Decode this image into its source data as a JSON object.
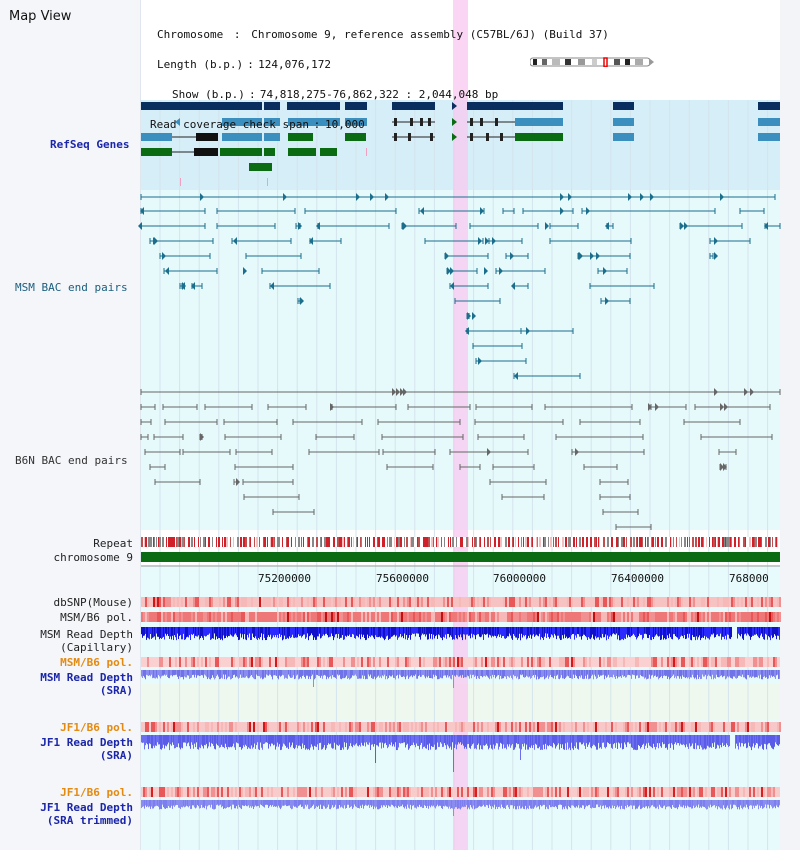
{
  "title": "Map View",
  "info": {
    "chromosome_label": "Chromosome",
    "chromosome_value": "Chromosome 9, reference assembly (C57BL/6J) (Build 37)",
    "length_label": "Length (b.p.)",
    "length_value": "124,076,172",
    "show_label": "Show (b.p.)",
    "show_value": "74,818,275-76,862,322 : 2,044,048 bp",
    "span_label": "Read coverage check span",
    "span_value": "10,000"
  },
  "tracks": {
    "refseq": "RefSeq Genes",
    "msm_bac": "MSM BAC end pairs",
    "b6n_bac": "B6N BAC end pairs",
    "repeat": "Repeat",
    "chromosome": "chromosome 9",
    "dbsnp": "dbSNP(Mouse)",
    "msm_b6_pol_1": "MSM/B6 pol.",
    "msm_read_depth_cap_1": "MSM Read Depth",
    "msm_read_depth_cap_2": "(Capillary)",
    "msm_b6_pol_2": "MSM/B6 pol.",
    "msm_read_depth_sra_1": "MSM Read Depth",
    "msm_read_depth_sra_2": "(SRA)",
    "jf1_b6_pol_1": "JF1/B6 pol.",
    "jf1_read_depth_sra_1": "JF1 Read Depth",
    "jf1_read_depth_sra_2": "(SRA)",
    "jf1_b6_pol_2": "JF1/B6 pol.",
    "jf1_read_depth_trim_1": "JF1 Read Depth",
    "jf1_read_depth_trim_2": "(SRA trimmed)"
  },
  "axis_ticks": [
    "75200000",
    "75600000",
    "76000000",
    "76400000",
    "768000"
  ],
  "colors": {
    "refseq_bg": "#d6eef8",
    "bac_bg": "#e6fafc",
    "highlight": "#f8c8f0",
    "dark_navy": "#0a2f5e",
    "steel_blue": "#3b8fbf",
    "green": "#0b6b12",
    "teal_line": "#1b6e8c",
    "gray_line": "#666666",
    "depth_blue": "#1a1af0",
    "depth_light": "#8a8cf0",
    "pol_red": "#f08080"
  }
}
